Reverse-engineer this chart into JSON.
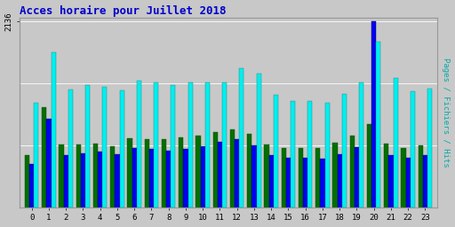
{
  "title": "Acces horaire pour Juillet 2018",
  "ylabel_right": "Pages / Fichiers / Hits",
  "hours": [
    0,
    1,
    2,
    3,
    4,
    5,
    6,
    7,
    8,
    9,
    10,
    11,
    12,
    13,
    14,
    15,
    16,
    17,
    18,
    19,
    20,
    21,
    22,
    23
  ],
  "pages": [
    600,
    1150,
    720,
    720,
    730,
    700,
    790,
    780,
    780,
    800,
    820,
    860,
    890,
    840,
    720,
    680,
    680,
    680,
    740,
    820,
    950,
    730,
    680,
    710
  ],
  "fichiers": [
    500,
    1020,
    600,
    620,
    640,
    610,
    680,
    670,
    650,
    670,
    700,
    750,
    780,
    710,
    600,
    570,
    570,
    560,
    610,
    690,
    2136,
    600,
    570,
    600
  ],
  "hits": [
    1200,
    1780,
    1350,
    1400,
    1380,
    1340,
    1450,
    1430,
    1400,
    1430,
    1430,
    1430,
    1600,
    1540,
    1290,
    1220,
    1220,
    1200,
    1300,
    1430,
    1900,
    1480,
    1330,
    1360
  ],
  "pages_color": "#007000",
  "fichiers_color": "#0000EE",
  "hits_color": "#00EEEE",
  "bg_color": "#C8C8C8",
  "plot_bg_color": "#C8C8C8",
  "border_color": "#999999",
  "title_color": "#0000CC",
  "ylabel_color": "#00AAAA",
  "ymax": 2136,
  "ytick_label": "2136",
  "grid_lines": [
    712,
    1424,
    2136
  ],
  "bar_width": 0.27
}
